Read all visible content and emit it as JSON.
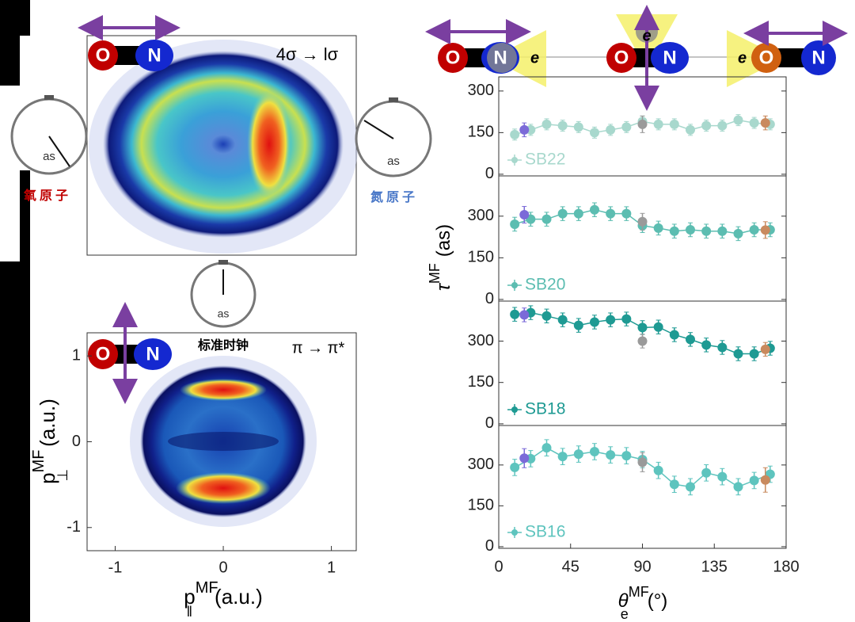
{
  "header": {
    "molecules": [
      {
        "atoms": [
          "O",
          "N"
        ],
        "electron": "e"
      },
      {
        "atoms": [
          "O",
          "N"
        ],
        "electron": "e"
      },
      {
        "atoms": [
          "O",
          "N"
        ],
        "electron": "e"
      }
    ]
  },
  "chart_data": [
    {
      "type": "heatmap",
      "title": "4σ → lσ",
      "atoms": [
        "O",
        "N"
      ],
      "clocks": [
        {
          "label": "as",
          "caption": "氧原子",
          "color": "#c00000"
        },
        {
          "label": "as",
          "caption": "氮原子",
          "color": "#4a78c8"
        }
      ]
    },
    {
      "type": "heatmap",
      "title": "π → π*",
      "atoms": [
        "O",
        "N"
      ],
      "clock": {
        "label": "as",
        "caption": "标准时钟"
      },
      "xlim": [
        -1.26,
        1.23
      ],
      "xticks": [
        -1,
        0,
        1
      ],
      "ylim": [
        -1.27,
        1.27
      ],
      "yticks": [
        -1,
        0,
        1
      ],
      "xlabel": {
        "symbol": "p",
        "sup": "MF",
        "sub": "‖",
        "unit": "(a.u.)"
      },
      "ylabel": {
        "symbol": "p",
        "sup": "MF",
        "sub": "⊥",
        "unit": "(a.u.)"
      }
    },
    {
      "type": "line",
      "xlim": [
        0,
        180
      ],
      "ylim": [
        -6,
        351
      ],
      "yticks": [
        0,
        150,
        300
      ],
      "series": [
        {
          "name": "SB22",
          "color": "#a8d8cd",
          "x": [
            10,
            20,
            30,
            40,
            50,
            60,
            70,
            80,
            90,
            100,
            110,
            120,
            130,
            140,
            150,
            160,
            170
          ],
          "values": [
            143,
            160,
            180,
            175,
            170,
            150,
            160,
            170,
            190,
            180,
            180,
            160,
            175,
            175,
            195,
            185,
            180
          ],
          "errors": [
            20,
            20,
            20,
            20,
            20,
            20,
            20,
            20,
            20,
            20,
            20,
            20,
            20,
            20,
            20,
            20,
            20
          ]
        }
      ],
      "highlights": [
        {
          "x": 16,
          "value": 160,
          "error": 25,
          "color": "#7b6ad8"
        },
        {
          "x": 90,
          "value": 180,
          "error": 30,
          "color": "#9a9a9a"
        },
        {
          "x": 167,
          "value": 185,
          "error": 25,
          "color": "#c98a5e"
        }
      ]
    },
    {
      "type": "line",
      "xlim": [
        0,
        180
      ],
      "ylim": [
        -6,
        445
      ],
      "yticks": [
        0,
        150,
        300
      ],
      "ylabel": {
        "symbol": "τ",
        "sup": "MF",
        "unit": "(as)"
      },
      "series": [
        {
          "name": "SB20",
          "color": "#5cbdb1",
          "x": [
            10,
            20,
            30,
            40,
            50,
            60,
            70,
            80,
            90,
            100,
            110,
            120,
            130,
            140,
            150,
            160,
            170
          ],
          "values": [
            271,
            289,
            289,
            309,
            309,
            323,
            309,
            309,
            266,
            257,
            246,
            251,
            246,
            246,
            237,
            251,
            251
          ],
          "errors": [
            25,
            25,
            25,
            25,
            25,
            25,
            25,
            25,
            25,
            25,
            25,
            25,
            25,
            25,
            25,
            25,
            25
          ]
        }
      ],
      "highlights": [
        {
          "x": 16,
          "value": 305,
          "error": 30,
          "color": "#7b6ad8"
        },
        {
          "x": 90,
          "value": 280,
          "error": 30,
          "color": "#9a9a9a"
        },
        {
          "x": 167,
          "value": 250,
          "error": 30,
          "color": "#c98a5e"
        }
      ]
    },
    {
      "type": "line",
      "xlim": [
        0,
        180
      ],
      "ylim": [
        -6,
        445
      ],
      "yticks": [
        0,
        150,
        300
      ],
      "series": [
        {
          "name": "SB18",
          "color": "#1e9a93",
          "x": [
            10,
            20,
            30,
            40,
            50,
            60,
            70,
            80,
            90,
            100,
            110,
            120,
            130,
            140,
            150,
            160,
            170
          ],
          "values": [
            397,
            403,
            391,
            377,
            357,
            369,
            377,
            380,
            349,
            351,
            323,
            306,
            286,
            277,
            254,
            254,
            274
          ],
          "errors": [
            25,
            25,
            25,
            25,
            25,
            25,
            25,
            25,
            25,
            25,
            25,
            25,
            25,
            25,
            25,
            25,
            25
          ]
        }
      ],
      "highlights": [
        {
          "x": 16,
          "value": 395,
          "error": 25,
          "color": "#7b6ad8"
        },
        {
          "x": 90,
          "value": 300,
          "error": 25,
          "color": "#9a9a9a"
        },
        {
          "x": 167,
          "value": 270,
          "error": 25,
          "color": "#c98a5e"
        }
      ]
    },
    {
      "type": "line",
      "xlim": [
        0,
        180
      ],
      "ylim": [
        -6,
        445
      ],
      "yticks": [
        0,
        150,
        300
      ],
      "xticks": [
        0,
        45,
        90,
        135,
        180
      ],
      "xlabel": {
        "symbol": "θ",
        "sup": "MF",
        "sub": "e",
        "unit": "(°)"
      },
      "series": [
        {
          "name": "SB16",
          "color": "#5ec4be",
          "x": [
            10,
            20,
            30,
            40,
            50,
            60,
            70,
            80,
            90,
            100,
            110,
            120,
            130,
            140,
            150,
            160,
            170
          ],
          "values": [
            291,
            323,
            363,
            331,
            340,
            349,
            337,
            334,
            320,
            280,
            229,
            220,
            271,
            257,
            220,
            243,
            266
          ],
          "errors": [
            30,
            30,
            30,
            30,
            30,
            30,
            30,
            30,
            30,
            30,
            30,
            30,
            30,
            30,
            30,
            30,
            30
          ]
        }
      ],
      "highlights": [
        {
          "x": 16,
          "value": 325,
          "error": 35,
          "color": "#7b6ad8"
        },
        {
          "x": 90,
          "value": 310,
          "error": 35,
          "color": "#9a9a9a"
        },
        {
          "x": 167,
          "value": 245,
          "error": 45,
          "color": "#c98a5e"
        }
      ]
    }
  ]
}
